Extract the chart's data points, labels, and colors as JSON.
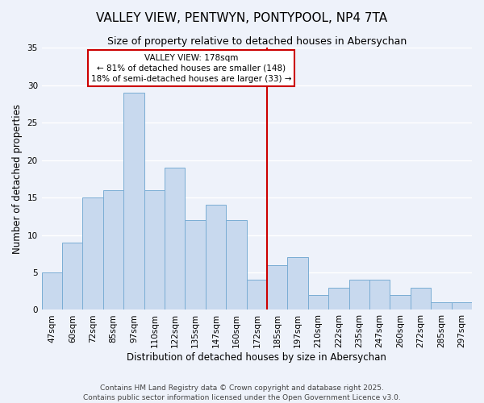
{
  "title": "VALLEY VIEW, PENTWYN, PONTYPOOL, NP4 7TA",
  "subtitle": "Size of property relative to detached houses in Abersychan",
  "xlabel": "Distribution of detached houses by size in Abersychan",
  "ylabel": "Number of detached properties",
  "categories": [
    "47sqm",
    "60sqm",
    "72sqm",
    "85sqm",
    "97sqm",
    "110sqm",
    "122sqm",
    "135sqm",
    "147sqm",
    "160sqm",
    "172sqm",
    "185sqm",
    "197sqm",
    "210sqm",
    "222sqm",
    "235sqm",
    "247sqm",
    "260sqm",
    "272sqm",
    "285sqm",
    "297sqm"
  ],
  "values": [
    5,
    9,
    15,
    16,
    29,
    16,
    19,
    12,
    14,
    12,
    4,
    6,
    7,
    2,
    3,
    4,
    4,
    2,
    3,
    1,
    1
  ],
  "bar_color": "#c8d9ee",
  "bar_edge_color": "#7aadd4",
  "ylim": [
    0,
    35
  ],
  "yticks": [
    0,
    5,
    10,
    15,
    20,
    25,
    30,
    35
  ],
  "annotation_title": "VALLEY VIEW: 178sqm",
  "annotation_line1": "← 81% of detached houses are smaller (148)",
  "annotation_line2": "18% of semi-detached houses are larger (33) →",
  "annotation_box_facecolor": "#ffffff",
  "annotation_border_color": "#cc0000",
  "red_line_color": "#cc0000",
  "footer_line1": "Contains HM Land Registry data © Crown copyright and database right 2025.",
  "footer_line2": "Contains public sector information licensed under the Open Government Licence v3.0.",
  "background_color": "#eef2fa",
  "grid_color": "#ffffff",
  "title_fontsize": 11,
  "subtitle_fontsize": 9,
  "xlabel_fontsize": 8.5,
  "ylabel_fontsize": 8.5,
  "tick_fontsize": 7.5,
  "annotation_fontsize": 7.5,
  "footer_fontsize": 6.5
}
